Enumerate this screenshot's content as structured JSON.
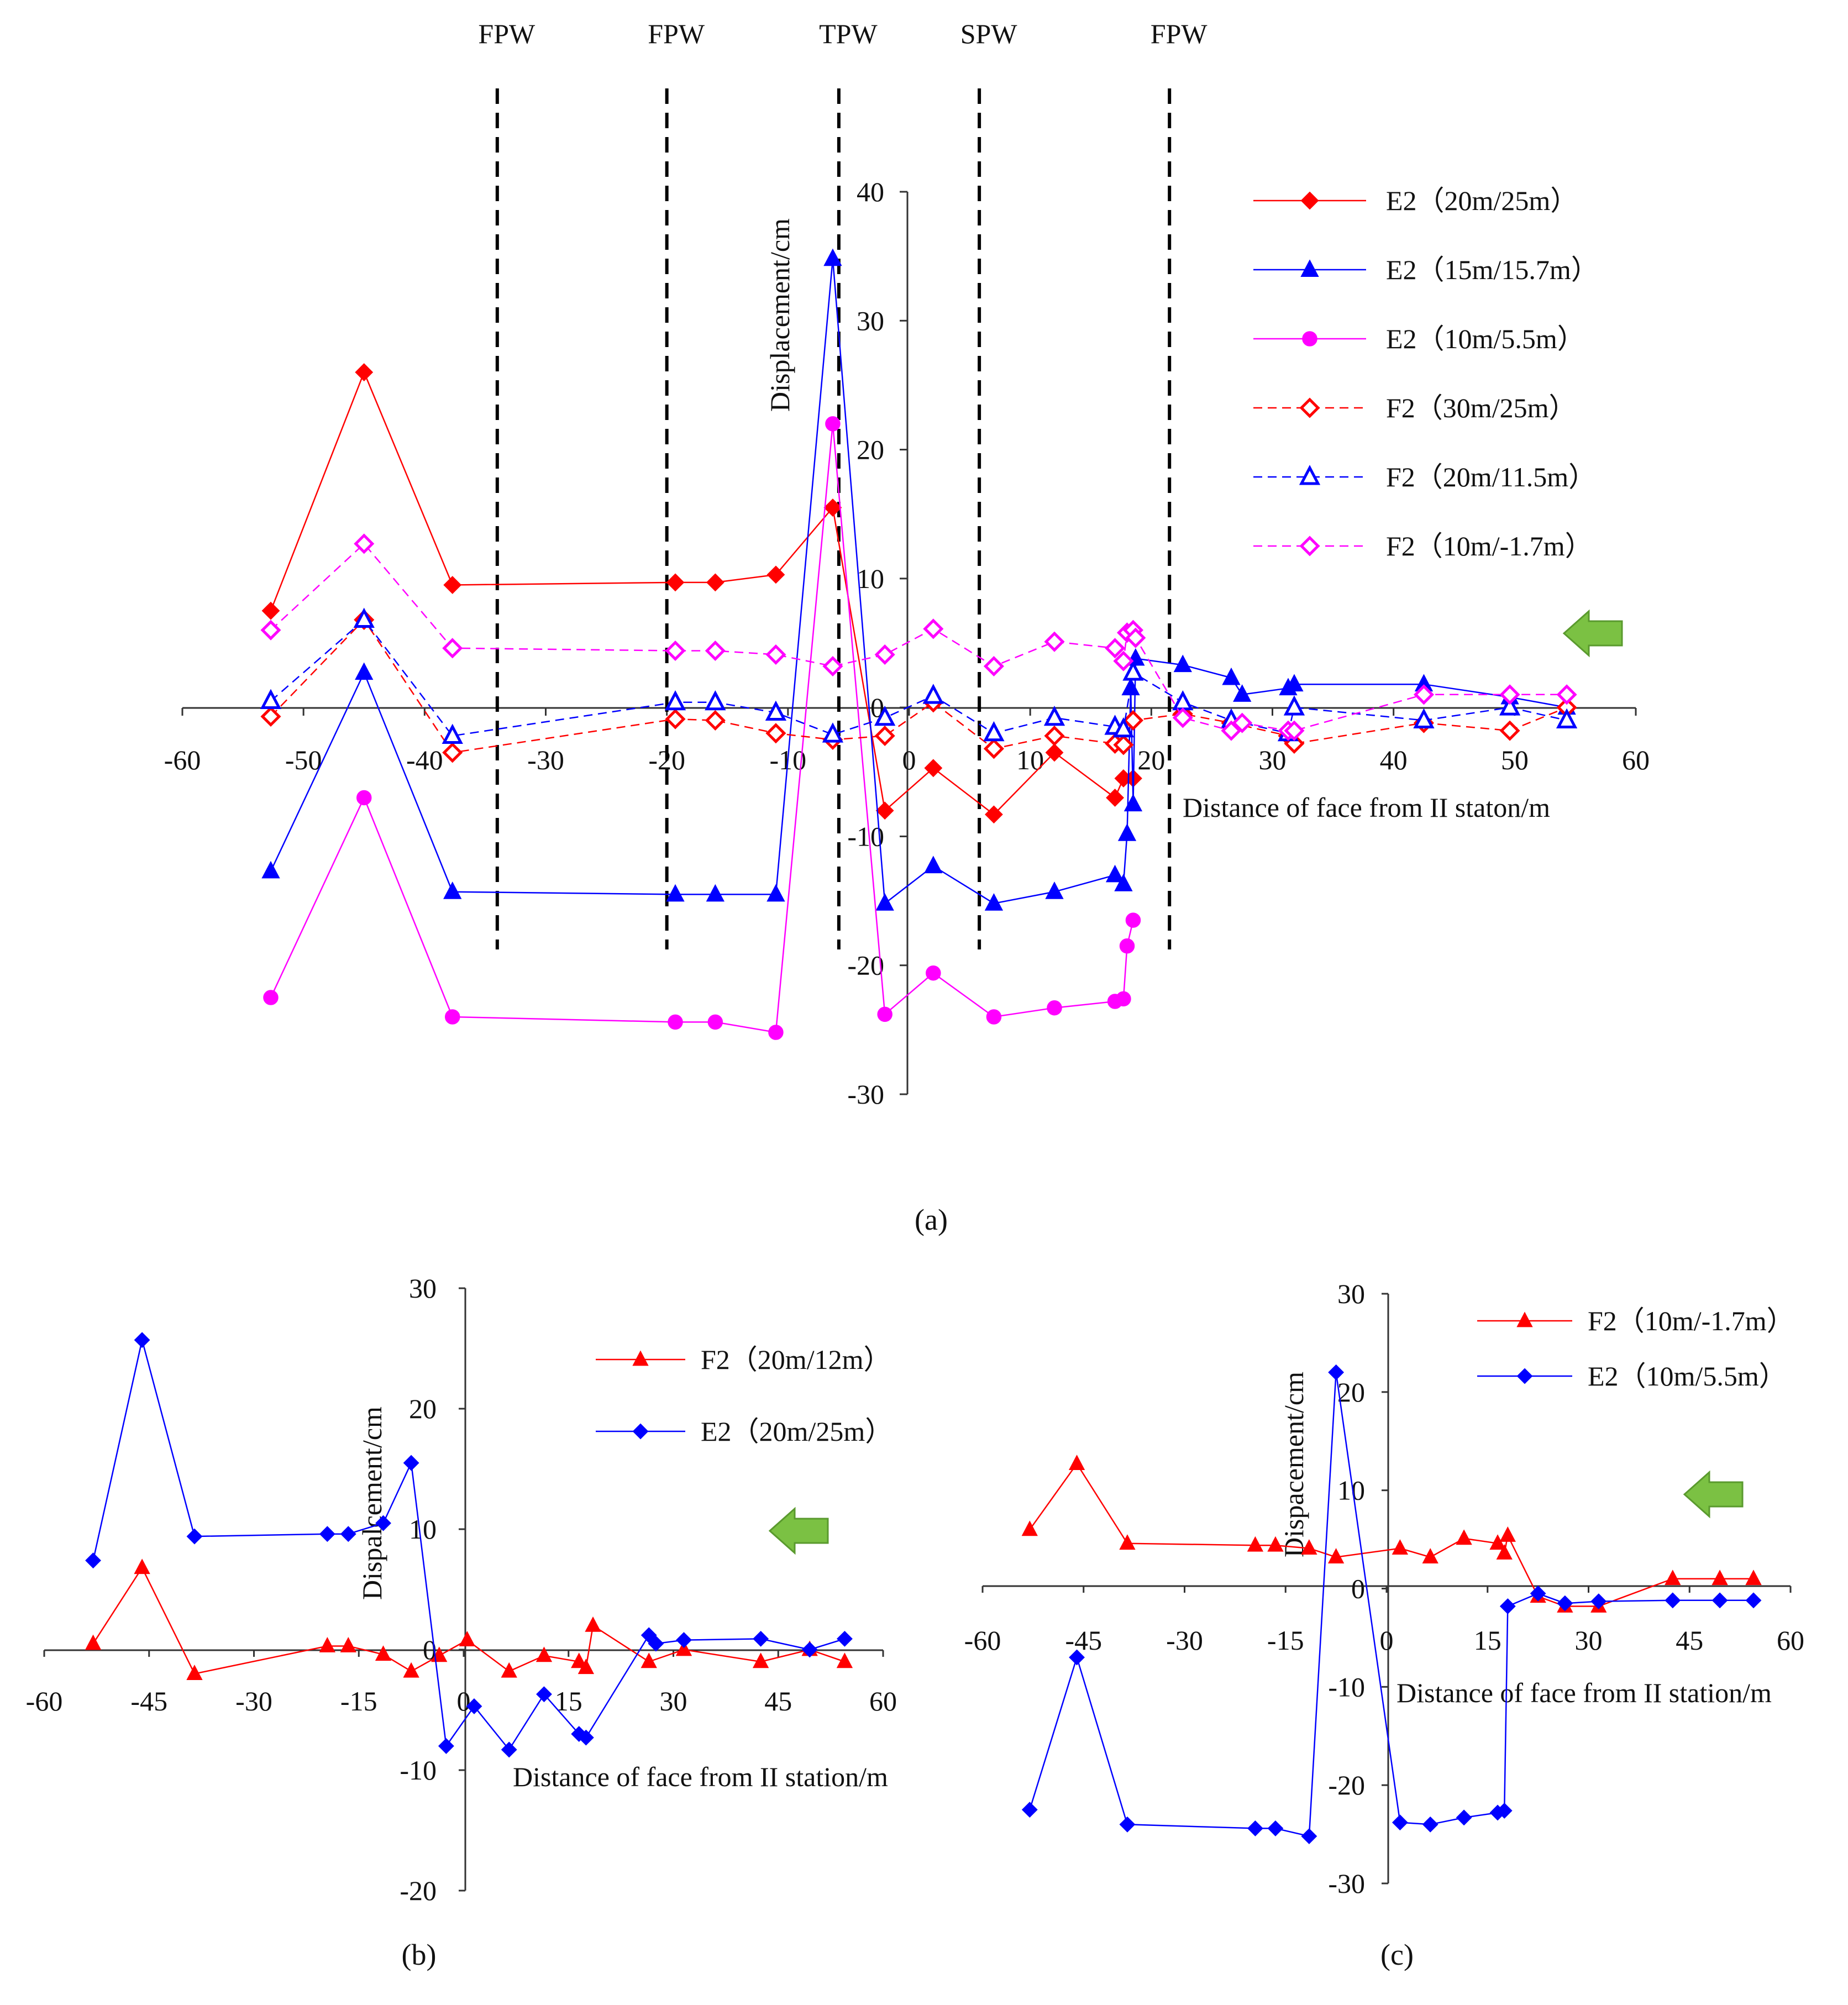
{
  "chart_data": [
    {
      "panel": "(a)",
      "type": "line",
      "xlabel": "Distance of face from II staton/m",
      "ylabel": "Displacement/cm",
      "xlim": [
        -60,
        60
      ],
      "ylim": [
        -30,
        40
      ],
      "xticks": [
        -60,
        -50,
        -40,
        -30,
        -20,
        -10,
        0,
        10,
        20,
        30,
        40,
        50,
        60
      ],
      "yticks": [
        -30,
        -20,
        -10,
        0,
        10,
        20,
        30,
        40
      ],
      "grid": false,
      "legend_position": "right",
      "arrow": "left",
      "annotations": [
        {
          "text": "FPW",
          "x": -34
        },
        {
          "text": "FPW",
          "x": -20
        },
        {
          "text": "TPW",
          "x": -5.8
        },
        {
          "text": "SPW",
          "x": 5.8
        },
        {
          "text": "FPW",
          "x": 21.5
        }
      ],
      "series": [
        {
          "name": "E2（20m/25m）",
          "color": "#ff0000",
          "dash": false,
          "marker": "diamond",
          "filled": true,
          "x": [
            -52.7,
            -45,
            -37.7,
            -19.3,
            -16,
            -11,
            -6.3,
            -2,
            2,
            7,
            12,
            17,
            17.7,
            18.5
          ],
          "y": [
            7.5,
            26,
            9.5,
            9.7,
            9.7,
            10.3,
            15.5,
            -8,
            -4.7,
            -8.3,
            -3.5,
            -7,
            -5.5,
            -5.5
          ]
        },
        {
          "name": "E2（15m/15.7m）",
          "color": "#0000ff",
          "dash": false,
          "marker": "triangle",
          "filled": true,
          "x": [
            -52.7,
            -45,
            -37.7,
            -19.3,
            -16,
            -11,
            -6.3,
            -2,
            2,
            7,
            12,
            17,
            17.7,
            18,
            18.3,
            18.5,
            18.7,
            22.6,
            26.6,
            27.5,
            31.3,
            31.8,
            42.5,
            49.6,
            54.3
          ],
          "y": [
            -12.7,
            2.7,
            -14.3,
            -14.5,
            -14.5,
            -14.5,
            34.8,
            -15.2,
            -12.3,
            -15.2,
            -14.3,
            -13,
            -13.7,
            -9.8,
            1.5,
            -7.5,
            3.8,
            3.3,
            2.3,
            1,
            1.5,
            1.8,
            1.8,
            0.8,
            0
          ]
        },
        {
          "name": "E2（10m/5.5m）",
          "color": "#ff00ff",
          "dash": false,
          "marker": "circle",
          "filled": true,
          "x": [
            -52.7,
            -45,
            -37.7,
            -19.3,
            -16,
            -11,
            -6.3,
            -2,
            2,
            7,
            12,
            17,
            17.7,
            18,
            18.5
          ],
          "y": [
            -22.5,
            -7,
            -24,
            -24.4,
            -24.4,
            -25.2,
            22,
            -23.8,
            -20.6,
            -24,
            -23.3,
            -22.8,
            -22.6,
            -18.5,
            -16.5
          ]
        },
        {
          "name": "F2（30m/25m）",
          "color": "#ff0000",
          "dash": true,
          "marker": "diamond",
          "filled": false,
          "x": [
            -52.7,
            -45,
            -37.7,
            -19.3,
            -16,
            -11,
            -6.3,
            -2,
            2,
            7,
            12,
            17,
            17.7,
            18.5,
            22.6,
            26.6,
            31.3,
            31.8,
            42.5,
            49.6,
            54.3
          ],
          "y": [
            -0.7,
            6.8,
            -3.5,
            -0.9,
            -1,
            -2,
            -2.5,
            -2.2,
            0.4,
            -3.2,
            -2.2,
            -2.8,
            -2.9,
            -1,
            -0.5,
            -1.2,
            -2.2,
            -2.8,
            -1.2,
            -1.8,
            0
          ]
        },
        {
          "name": "F2（20m/11.5m）",
          "color": "#0000ff",
          "dash": true,
          "marker": "triangle",
          "filled": false,
          "x": [
            -52.7,
            -45,
            -37.7,
            -19.3,
            -16,
            -11,
            -6.3,
            -2,
            2,
            7,
            12,
            17,
            17.7,
            18.5,
            22.6,
            26.6,
            31.3,
            31.8,
            42.5,
            49.6,
            54.3
          ],
          "y": [
            0.5,
            6.8,
            -2.2,
            0.4,
            0.4,
            -0.4,
            -2.1,
            -0.8,
            0.9,
            -2,
            -0.8,
            -1.5,
            -1.7,
            2.7,
            0.4,
            -1,
            -2,
            0,
            -1,
            0,
            -1
          ]
        },
        {
          "name": "F2（10m/-1.7m）",
          "color": "#ff00ff",
          "dash": true,
          "marker": "diamond",
          "filled": false,
          "x": [
            -52.7,
            -45,
            -37.7,
            -19.3,
            -16,
            -11,
            -6.3,
            -2,
            2,
            7,
            12,
            17,
            17.7,
            18,
            18.5,
            18.7,
            22.6,
            26.6,
            27.5,
            31.3,
            31.8,
            42.5,
            49.6,
            54.3
          ],
          "y": [
            6,
            12.7,
            4.6,
            4.4,
            4.4,
            4.1,
            3.2,
            4.1,
            6.1,
            3.2,
            5.1,
            4.6,
            3.6,
            5.8,
            6,
            5.4,
            -0.8,
            -1.8,
            -1.2,
            -1.8,
            -1.8,
            1,
            1,
            1
          ]
        }
      ]
    },
    {
      "panel": "(b)",
      "type": "line",
      "xlabel": "Distance of face from II station/m",
      "ylabel": "Dispalcement/cm",
      "xlim": [
        -60,
        60
      ],
      "ylim": [
        -20,
        30
      ],
      "xticks": [
        -60,
        -45,
        -30,
        -15,
        0,
        15,
        30,
        45,
        60
      ],
      "yticks": [
        -20,
        -10,
        0,
        10,
        20,
        30
      ],
      "grid": false,
      "legend_position": "top-right",
      "arrow": "left",
      "series": [
        {
          "name": "F2（20m/12m）",
          "color": "#ff0000",
          "dash": false,
          "marker": "triangle",
          "filled": true,
          "x": [
            -53,
            -46,
            -38.5,
            -19.5,
            -16.5,
            -11.5,
            -7.5,
            -3.5,
            0.5,
            6.5,
            11.5,
            16.5,
            17.5,
            18.5,
            26.5,
            31.5,
            42.5,
            49.5,
            54.5
          ],
          "y": [
            0.5,
            6.8,
            -2,
            0.3,
            0.3,
            -0.4,
            -1.8,
            -0.5,
            0.8,
            -1.8,
            -0.5,
            -1,
            -1.5,
            2,
            -1,
            0,
            -1,
            0,
            -1
          ]
        },
        {
          "name": "E2（20m/25m）",
          "color": "#0000ff",
          "dash": false,
          "marker": "diamond",
          "filled": true,
          "x": [
            -53,
            -46,
            -38.5,
            -19.5,
            -16.5,
            -11.5,
            -7.5,
            -2.5,
            1.5,
            6.5,
            11.5,
            16.5,
            17.5,
            26.5,
            27.5,
            31.5,
            42.5,
            49.5,
            54.5
          ],
          "y": [
            7.4,
            25.7,
            9.4,
            9.6,
            9.6,
            10.5,
            15.5,
            -8,
            -4.7,
            -8.3,
            -3.7,
            -7,
            -7.3,
            1.2,
            0.5,
            0.8,
            0.9,
            0,
            0.9
          ]
        }
      ]
    },
    {
      "panel": "(c)",
      "type": "line",
      "xlabel": "Distance of face from II station/m",
      "ylabel": "Dispacement/cm",
      "xlim": [
        -60,
        60
      ],
      "ylim": [
        -30,
        30
      ],
      "xticks": [
        -60,
        -45,
        -30,
        -15,
        0,
        15,
        30,
        45,
        60
      ],
      "yticks": [
        -30,
        -20,
        -10,
        0,
        10,
        20,
        30
      ],
      "grid": false,
      "legend_position": "top-right",
      "arrow": "left",
      "series": [
        {
          "name": "F2（10m/-1.7m）",
          "color": "#ff0000",
          "dash": false,
          "marker": "triangle",
          "filled": true,
          "x": [
            -53,
            -46,
            -38.5,
            -19.5,
            -16.5,
            -11.5,
            -7.5,
            2,
            6.5,
            11.5,
            16.5,
            17.5,
            18,
            22.5,
            26.5,
            31.5,
            42.5,
            49.5,
            54.5
          ],
          "y": [
            6,
            12.7,
            4.6,
            4.4,
            4.4,
            4.1,
            3.2,
            4.1,
            3.2,
            5.1,
            4.6,
            3.6,
            5.4,
            -0.8,
            -1.8,
            -1.8,
            1,
            1,
            1
          ]
        },
        {
          "name": "E2（10m/5.5m）",
          "color": "#0000ff",
          "dash": false,
          "marker": "diamond",
          "filled": true,
          "x": [
            -53,
            -46,
            -38.5,
            -19.5,
            -16.5,
            -11.5,
            -7.5,
            2,
            6.5,
            11.5,
            16.5,
            17.5,
            18,
            22.5,
            26.5,
            31.5,
            42.5,
            49.5,
            54.5
          ],
          "y": [
            -22.5,
            -7,
            -24,
            -24.4,
            -24.4,
            -25.2,
            22,
            -23.8,
            -24,
            -23.3,
            -22.8,
            -22.6,
            -1.8,
            -0.5,
            -1.5,
            -1.3,
            -1.2,
            -1.2,
            -1.2
          ]
        }
      ]
    }
  ]
}
